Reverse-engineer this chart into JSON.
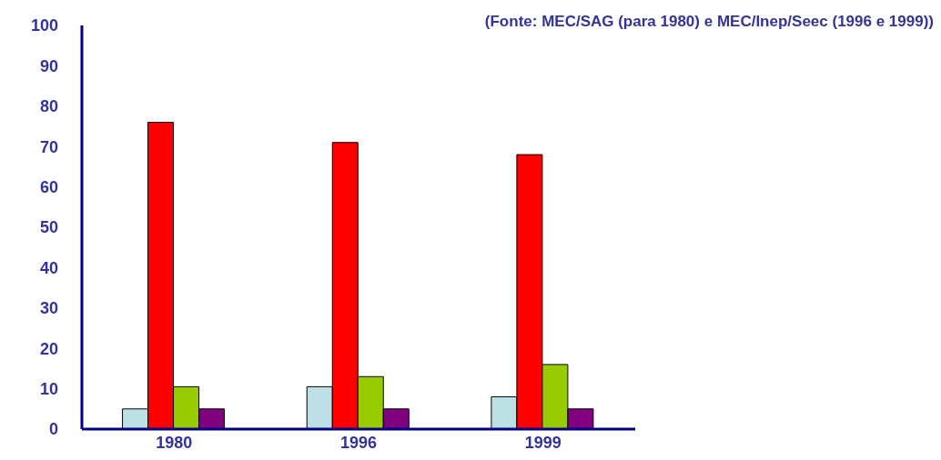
{
  "chart_data": {
    "type": "bar",
    "annotations": [
      "(Fonte: MEC/SAG (para 1980) e MEC/Inep/Seec (1996 e 1999))"
    ],
    "categories": [
      "1980",
      "1996",
      "1999"
    ],
    "series": [
      {
        "color": "#bde0e4",
        "values": [
          5,
          10.5,
          8
        ]
      },
      {
        "color": "#ff0000",
        "values": [
          76,
          71,
          68
        ]
      },
      {
        "color": "#99cc00",
        "values": [
          10.5,
          13,
          16
        ]
      },
      {
        "color": "#800080",
        "values": [
          5,
          5,
          5
        ]
      }
    ],
    "ylim": [
      0,
      100
    ],
    "yticks": [
      0,
      10,
      20,
      30,
      40,
      50,
      60,
      70,
      80,
      90,
      100
    ],
    "grid": false,
    "legend": false
  }
}
